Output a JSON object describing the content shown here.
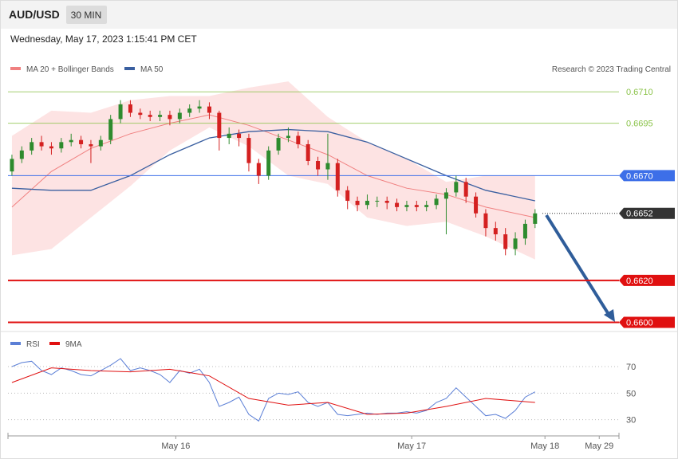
{
  "header": {
    "symbol": "AUD/USD",
    "interval": "30 MIN",
    "timestamp": "Wednesday, May 17, 2023 1:15:41 PM CET",
    "credit": "Research © 2023 Trading Central"
  },
  "chart_data": [
    {
      "type": "candlestick",
      "ylim": [
        0.6596,
        0.6731
      ],
      "xlim": [
        -0.4,
        61.5
      ],
      "xticks": [
        {
          "value": 16.6,
          "label": "May 16"
        },
        {
          "value": 40.5,
          "label": "May 17"
        },
        {
          "value": 54,
          "label": "May 18"
        },
        {
          "value": 59.5,
          "label": "May 29"
        }
      ],
      "up_color": "#2e8b2e",
      "down_color": "#d42020",
      "open": [
        0.6672,
        0.6678,
        0.6682,
        0.6686,
        0.6684,
        0.6683,
        0.6686,
        0.6687,
        0.6685,
        0.6684,
        0.6687,
        0.6697,
        0.6704,
        0.67,
        0.6699,
        0.6698,
        0.6699,
        0.6697,
        0.67,
        0.6702,
        0.6703,
        0.67,
        0.6688,
        0.669,
        0.6688,
        0.6676,
        0.667,
        0.6682,
        0.6688,
        0.6689,
        0.6685,
        0.6677,
        0.6673,
        0.6676,
        0.6663,
        0.6658,
        0.6656,
        0.6658,
        0.6658,
        0.6657,
        0.6655,
        0.6656,
        0.6655,
        0.6656,
        0.6659,
        0.6662,
        0.6667,
        0.666,
        0.6652,
        0.6645,
        0.6642,
        0.6635,
        0.664,
        0.6647
      ],
      "high": [
        0.668,
        0.6684,
        0.6688,
        0.6689,
        0.6686,
        0.6688,
        0.669,
        0.6689,
        0.6687,
        0.6689,
        0.6699,
        0.6706,
        0.6706,
        0.6702,
        0.6701,
        0.6701,
        0.6701,
        0.6702,
        0.6704,
        0.6706,
        0.6705,
        0.6701,
        0.6693,
        0.6692,
        0.669,
        0.6678,
        0.6684,
        0.669,
        0.6693,
        0.6691,
        0.6687,
        0.6679,
        0.669,
        0.6678,
        0.6665,
        0.666,
        0.6661,
        0.666,
        0.666,
        0.6659,
        0.6658,
        0.6658,
        0.6658,
        0.6661,
        0.6664,
        0.667,
        0.6669,
        0.6662,
        0.6654,
        0.6648,
        0.6645,
        0.6643,
        0.6649,
        0.6654
      ],
      "low": [
        0.667,
        0.6676,
        0.668,
        0.6682,
        0.668,
        0.6681,
        0.6684,
        0.6683,
        0.6676,
        0.6682,
        0.6685,
        0.6695,
        0.6698,
        0.6697,
        0.6696,
        0.6696,
        0.6694,
        0.6695,
        0.6698,
        0.67,
        0.6697,
        0.6682,
        0.6685,
        0.6684,
        0.6672,
        0.6666,
        0.6668,
        0.668,
        0.6686,
        0.6683,
        0.6675,
        0.667,
        0.6668,
        0.666,
        0.6654,
        0.6653,
        0.6654,
        0.6655,
        0.6654,
        0.6653,
        0.6653,
        0.6653,
        0.6653,
        0.6654,
        0.6642,
        0.666,
        0.6657,
        0.665,
        0.6641,
        0.6639,
        0.6632,
        0.6632,
        0.6637,
        0.6645
      ],
      "close": [
        0.6678,
        0.6682,
        0.6686,
        0.6684,
        0.6683,
        0.6686,
        0.6687,
        0.6685,
        0.6684,
        0.6687,
        0.6697,
        0.6704,
        0.67,
        0.6699,
        0.6698,
        0.6699,
        0.6697,
        0.67,
        0.6702,
        0.6703,
        0.67,
        0.6688,
        0.669,
        0.6688,
        0.6676,
        0.667,
        0.6682,
        0.6688,
        0.6689,
        0.6685,
        0.6677,
        0.6673,
        0.6676,
        0.6663,
        0.6658,
        0.6656,
        0.6658,
        0.6658,
        0.6657,
        0.6655,
        0.6656,
        0.6655,
        0.6656,
        0.6659,
        0.6662,
        0.6667,
        0.666,
        0.6652,
        0.6645,
        0.6642,
        0.6635,
        0.664,
        0.6647,
        0.6652
      ],
      "overlay_x": [
        0,
        4,
        8,
        12,
        16,
        20,
        24,
        28,
        32,
        36,
        40,
        44,
        48,
        53
      ],
      "series": [
        {
          "name": "MA 20 + Bollinger Bands",
          "color": "#f08080",
          "band_color": "#fde3e3",
          "values": [
            0.6655,
            0.6672,
            0.6683,
            0.669,
            0.6695,
            0.6699,
            0.6694,
            0.6687,
            0.668,
            0.667,
            0.6664,
            0.6661,
            0.6655,
            0.665
          ],
          "upper": [
            0.6689,
            0.6701,
            0.67,
            0.6706,
            0.6708,
            0.6708,
            0.6712,
            0.6715,
            0.6698,
            0.6686,
            0.6678,
            0.6667,
            0.667,
            0.667
          ],
          "lower": [
            0.6632,
            0.6635,
            0.665,
            0.6665,
            0.6682,
            0.6693,
            0.6684,
            0.667,
            0.6666,
            0.665,
            0.6646,
            0.6648,
            0.6641,
            0.663
          ]
        },
        {
          "name": "MA 50",
          "color": "#3a5fa0",
          "values": [
            0.6664,
            0.6663,
            0.6663,
            0.667,
            0.668,
            0.6688,
            0.6691,
            0.6692,
            0.6691,
            0.6686,
            0.6678,
            0.667,
            0.6663,
            0.6658
          ]
        }
      ],
      "levels": [
        {
          "value": 0.671,
          "label": "0.6710",
          "color": "#8bc34a",
          "style": "thin"
        },
        {
          "value": 0.6695,
          "label": "0.6695",
          "color": "#8bc34a",
          "style": "thin"
        },
        {
          "value": 0.667,
          "label": "0.6670",
          "color": "#3d6fe8",
          "style": "box"
        },
        {
          "value": 0.6652,
          "label": "0.6652",
          "color": "#333333",
          "style": "dotted"
        },
        {
          "value": 0.662,
          "label": "0.6620",
          "color": "#e01010",
          "style": "thick"
        },
        {
          "value": 0.66,
          "label": "0.6600",
          "color": "#e01010",
          "style": "thick"
        }
      ]
    },
    {
      "type": "line",
      "ylim": [
        19,
        82
      ],
      "yticks": [
        30,
        50,
        70
      ],
      "series": [
        {
          "name": "RSI",
          "color": "#5b7fd6",
          "values": [
            70,
            73,
            74,
            67,
            64,
            69,
            67,
            64,
            63,
            67,
            71,
            76,
            67,
            69,
            67,
            64,
            58,
            67,
            65,
            68,
            58,
            40,
            43,
            47,
            34,
            29,
            46,
            50,
            49,
            51,
            43,
            40,
            43,
            34,
            33,
            34,
            35,
            34,
            35,
            35,
            36,
            35,
            37,
            43,
            46,
            54,
            47,
            40,
            33,
            34,
            31,
            37,
            47,
            51
          ]
        },
        {
          "name": "9MA",
          "color": "#e01010",
          "values": [
            58,
            69,
            67,
            66,
            68,
            63,
            46,
            41,
            43,
            34,
            35,
            40,
            46,
            43
          ]
        }
      ]
    }
  ]
}
